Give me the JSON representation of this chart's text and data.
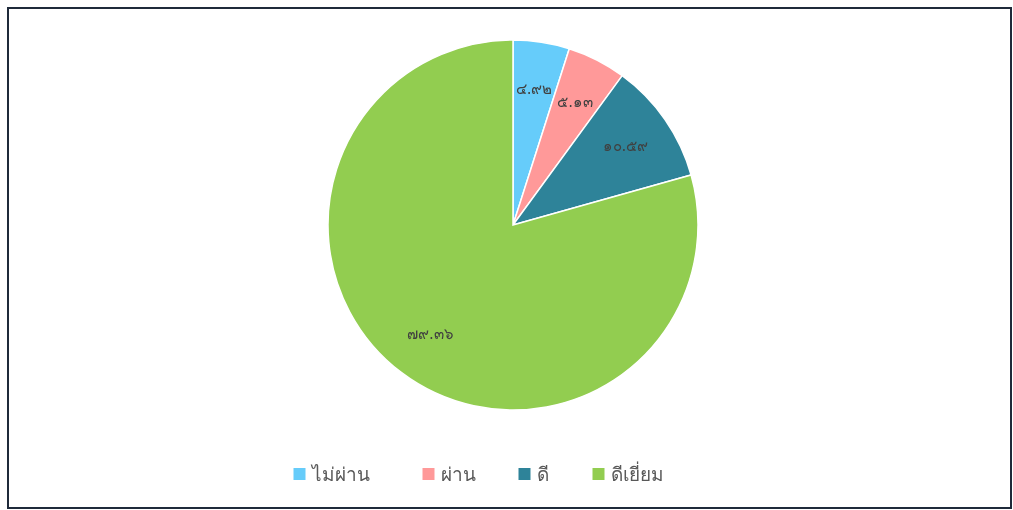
{
  "chart_data": {
    "type": "pie",
    "categories": [
      "ไม่ผ่าน",
      "ผ่าน",
      "ดี",
      "ดีเยี่ยม"
    ],
    "values": [
      4.92,
      5.13,
      10.59,
      79.36
    ],
    "colors": [
      "#66ccfa",
      "#ff9999",
      "#2e8399",
      "#92cd50"
    ],
    "value_labels": [
      "๔.๙๒",
      "๕.๑๓",
      "๑๐.๕๙",
      "๗๙.๓๖"
    ],
    "legend": "bottom"
  }
}
